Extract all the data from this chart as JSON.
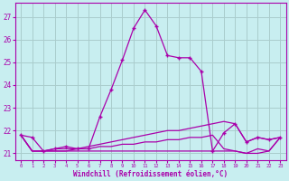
{
  "xlabel": "Windchill (Refroidissement éolien,°C)",
  "background_color": "#c8eef0",
  "grid_color": "#aacccc",
  "line_color": "#aa00aa",
  "xlim": [
    -0.5,
    23.5
  ],
  "ylim": [
    20.7,
    27.6
  ],
  "yticks": [
    21,
    22,
    23,
    24,
    25,
    26,
    27
  ],
  "xticks": [
    0,
    1,
    2,
    3,
    4,
    5,
    6,
    7,
    8,
    9,
    10,
    11,
    12,
    13,
    14,
    15,
    16,
    17,
    18,
    19,
    20,
    21,
    22,
    23
  ],
  "series": [
    {
      "x": [
        0,
        1,
        2,
        3,
        4,
        5,
        6,
        7,
        8,
        9,
        10,
        11,
        12,
        13,
        14,
        15,
        16,
        17,
        18,
        19,
        20,
        21,
        22,
        23
      ],
      "y": [
        21.8,
        21.7,
        21.1,
        21.2,
        21.3,
        21.2,
        21.2,
        22.6,
        23.8,
        25.1,
        26.5,
        27.3,
        26.6,
        25.3,
        25.2,
        25.2,
        24.6,
        21.1,
        21.9,
        22.3,
        21.5,
        21.7,
        21.6,
        21.7
      ],
      "marker": true
    },
    {
      "x": [
        0,
        1,
        2,
        3,
        4,
        5,
        6,
        7,
        8,
        9,
        10,
        11,
        12,
        13,
        14,
        15,
        16,
        17,
        18,
        19,
        20,
        21,
        22,
        23
      ],
      "y": [
        21.8,
        21.1,
        21.1,
        21.2,
        21.2,
        21.2,
        21.3,
        21.4,
        21.5,
        21.6,
        21.7,
        21.8,
        21.9,
        22.0,
        22.0,
        22.1,
        22.2,
        22.3,
        22.4,
        22.3,
        21.5,
        21.7,
        21.6,
        21.7
      ],
      "marker": false
    },
    {
      "x": [
        0,
        1,
        2,
        3,
        4,
        5,
        6,
        7,
        8,
        9,
        10,
        11,
        12,
        13,
        14,
        15,
        16,
        17,
        18,
        19,
        20,
        21,
        22,
        23
      ],
      "y": [
        21.8,
        21.1,
        21.1,
        21.1,
        21.1,
        21.2,
        21.2,
        21.3,
        21.3,
        21.4,
        21.4,
        21.5,
        21.5,
        21.6,
        21.6,
        21.7,
        21.7,
        21.8,
        21.2,
        21.1,
        21.0,
        21.2,
        21.1,
        21.7
      ],
      "marker": false
    },
    {
      "x": [
        0,
        1,
        2,
        3,
        4,
        5,
        6,
        7,
        8,
        9,
        10,
        11,
        12,
        13,
        14,
        15,
        16,
        17,
        18,
        19,
        20,
        21,
        22,
        23
      ],
      "y": [
        21.8,
        21.1,
        21.1,
        21.1,
        21.1,
        21.1,
        21.1,
        21.1,
        21.1,
        21.1,
        21.1,
        21.1,
        21.1,
        21.1,
        21.1,
        21.1,
        21.1,
        21.1,
        21.1,
        21.1,
        21.0,
        21.0,
        21.1,
        21.7
      ],
      "marker": false
    }
  ]
}
